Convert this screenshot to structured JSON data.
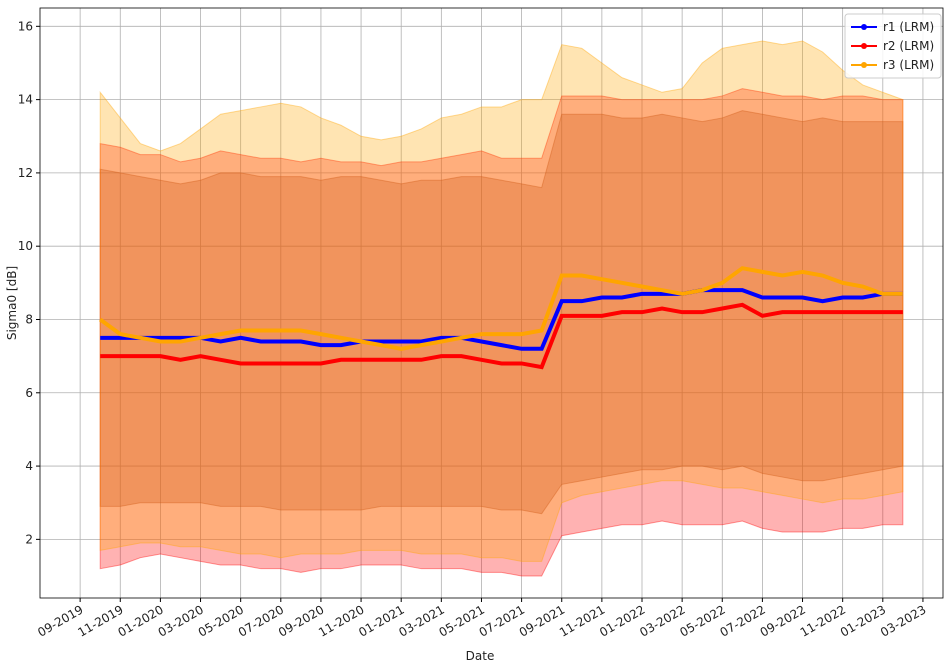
{
  "chart_data": {
    "type": "line",
    "x_label": "Date",
    "y_label": "Sigma0 [dB]",
    "x": [
      "2019-10",
      "2019-11",
      "2019-12",
      "2020-01",
      "2020-02",
      "2020-03",
      "2020-04",
      "2020-05",
      "2020-06",
      "2020-07",
      "2020-08",
      "2020-09",
      "2020-10",
      "2020-11",
      "2020-12",
      "2021-01",
      "2021-02",
      "2021-03",
      "2021-04",
      "2021-05",
      "2021-06",
      "2021-07",
      "2021-08",
      "2021-09",
      "2021-10",
      "2021-11",
      "2021-12",
      "2022-01",
      "2022-02",
      "2022-03",
      "2022-04",
      "2022-05",
      "2022-06",
      "2022-07",
      "2022-08",
      "2022-09",
      "2022-10",
      "2022-11",
      "2022-12",
      "2023-01",
      "2023-02"
    ],
    "series": [
      {
        "name": "r1 (LRM)",
        "color": "#0000ff",
        "band_color": "#a0522d",
        "values": [
          7.5,
          7.5,
          7.5,
          7.5,
          7.5,
          7.5,
          7.4,
          7.5,
          7.4,
          7.4,
          7.4,
          7.3,
          7.3,
          7.4,
          7.4,
          7.4,
          7.4,
          7.5,
          7.5,
          7.4,
          7.3,
          7.2,
          7.2,
          8.5,
          8.5,
          8.6,
          8.6,
          8.7,
          8.7,
          8.7,
          8.8,
          8.8,
          8.8,
          8.6,
          8.6,
          8.6,
          8.5,
          8.6,
          8.6,
          8.7,
          8.7
        ],
        "lower": [
          2.9,
          2.9,
          3.0,
          3.0,
          3.0,
          3.0,
          2.9,
          2.9,
          2.9,
          2.8,
          2.8,
          2.8,
          2.8,
          2.8,
          2.9,
          2.9,
          2.9,
          2.9,
          2.9,
          2.9,
          2.8,
          2.8,
          2.7,
          3.5,
          3.6,
          3.7,
          3.8,
          3.9,
          3.9,
          4.0,
          4.0,
          3.9,
          4.0,
          3.8,
          3.7,
          3.6,
          3.6,
          3.7,
          3.8,
          3.9,
          4.0
        ],
        "upper": [
          12.1,
          12.0,
          11.9,
          11.8,
          11.7,
          11.8,
          12.0,
          12.0,
          11.9,
          11.9,
          11.9,
          11.8,
          11.9,
          11.9,
          11.8,
          11.7,
          11.8,
          11.8,
          11.9,
          11.9,
          11.8,
          11.7,
          11.6,
          13.6,
          13.6,
          13.6,
          13.5,
          13.5,
          13.6,
          13.5,
          13.4,
          13.5,
          13.7,
          13.6,
          13.5,
          13.4,
          13.5,
          13.4,
          13.4,
          13.4,
          13.4
        ]
      },
      {
        "name": "r2 (LRM)",
        "color": "#ff0000",
        "band_color": "#ff0000",
        "values": [
          7.0,
          7.0,
          7.0,
          7.0,
          6.9,
          7.0,
          6.9,
          6.8,
          6.8,
          6.8,
          6.8,
          6.8,
          6.9,
          6.9,
          6.9,
          6.9,
          6.9,
          7.0,
          7.0,
          6.9,
          6.8,
          6.8,
          6.7,
          8.1,
          8.1,
          8.1,
          8.2,
          8.2,
          8.3,
          8.2,
          8.2,
          8.3,
          8.4,
          8.1,
          8.2,
          8.2,
          8.2,
          8.2,
          8.2,
          8.2,
          8.2
        ],
        "lower": [
          1.2,
          1.3,
          1.5,
          1.6,
          1.5,
          1.4,
          1.3,
          1.3,
          1.2,
          1.2,
          1.1,
          1.2,
          1.2,
          1.3,
          1.3,
          1.3,
          1.2,
          1.2,
          1.2,
          1.1,
          1.1,
          1.0,
          1.0,
          2.1,
          2.2,
          2.3,
          2.4,
          2.4,
          2.5,
          2.4,
          2.4,
          2.4,
          2.5,
          2.3,
          2.2,
          2.2,
          2.2,
          2.3,
          2.3,
          2.4,
          2.4
        ],
        "upper": [
          12.8,
          12.7,
          12.5,
          12.5,
          12.3,
          12.4,
          12.6,
          12.5,
          12.4,
          12.4,
          12.3,
          12.4,
          12.3,
          12.3,
          12.2,
          12.3,
          12.3,
          12.4,
          12.5,
          12.6,
          12.4,
          12.4,
          12.4,
          14.1,
          14.1,
          14.1,
          14.0,
          14.0,
          14.0,
          14.0,
          14.0,
          14.1,
          14.3,
          14.2,
          14.1,
          14.1,
          14.0,
          14.1,
          14.1,
          14.0,
          14.0
        ]
      },
      {
        "name": "r3 (LRM)",
        "color": "#ffa500",
        "band_color": "#ffa500",
        "values": [
          8.0,
          7.6,
          7.5,
          7.4,
          7.4,
          7.5,
          7.6,
          7.7,
          7.7,
          7.7,
          7.7,
          7.6,
          7.5,
          7.4,
          7.3,
          7.2,
          7.3,
          7.4,
          7.5,
          7.6,
          7.6,
          7.6,
          7.7,
          9.2,
          9.2,
          9.1,
          9.0,
          8.9,
          8.8,
          8.7,
          8.8,
          9.0,
          9.4,
          9.3,
          9.2,
          9.3,
          9.2,
          9.0,
          8.9,
          8.7,
          8.7
        ],
        "lower": [
          1.7,
          1.8,
          1.9,
          1.9,
          1.8,
          1.8,
          1.7,
          1.6,
          1.6,
          1.5,
          1.6,
          1.6,
          1.6,
          1.7,
          1.7,
          1.7,
          1.6,
          1.6,
          1.6,
          1.5,
          1.5,
          1.4,
          1.4,
          3.0,
          3.2,
          3.3,
          3.4,
          3.5,
          3.6,
          3.6,
          3.5,
          3.4,
          3.4,
          3.3,
          3.2,
          3.1,
          3.0,
          3.1,
          3.1,
          3.2,
          3.3
        ],
        "upper": [
          14.2,
          13.5,
          12.8,
          12.6,
          12.8,
          13.2,
          13.6,
          13.7,
          13.8,
          13.9,
          13.8,
          13.5,
          13.3,
          13.0,
          12.9,
          13.0,
          13.2,
          13.5,
          13.6,
          13.8,
          13.8,
          14.0,
          14.0,
          15.5,
          15.4,
          15.0,
          14.6,
          14.4,
          14.2,
          14.3,
          15.0,
          15.4,
          15.5,
          15.6,
          15.5,
          15.6,
          15.3,
          14.8,
          14.4,
          14.2,
          14.0
        ]
      }
    ],
    "band_opacity": 0.3,
    "xlim": [
      "2019-07",
      "2023-04"
    ],
    "xticks": [
      {
        "value": "2019-09",
        "label": "09-2019"
      },
      {
        "value": "2019-11",
        "label": "11-2019"
      },
      {
        "value": "2020-01",
        "label": "01-2020"
      },
      {
        "value": "2020-03",
        "label": "03-2020"
      },
      {
        "value": "2020-05",
        "label": "05-2020"
      },
      {
        "value": "2020-07",
        "label": "07-2020"
      },
      {
        "value": "2020-09",
        "label": "09-2020"
      },
      {
        "value": "2020-11",
        "label": "11-2020"
      },
      {
        "value": "2021-01",
        "label": "01-2021"
      },
      {
        "value": "2021-03",
        "label": "03-2021"
      },
      {
        "value": "2021-05",
        "label": "05-2021"
      },
      {
        "value": "2021-07",
        "label": "07-2021"
      },
      {
        "value": "2021-09",
        "label": "09-2021"
      },
      {
        "value": "2021-11",
        "label": "11-2021"
      },
      {
        "value": "2022-01",
        "label": "01-2022"
      },
      {
        "value": "2022-03",
        "label": "03-2022"
      },
      {
        "value": "2022-05",
        "label": "05-2022"
      },
      {
        "value": "2022-07",
        "label": "07-2022"
      },
      {
        "value": "2022-09",
        "label": "09-2022"
      },
      {
        "value": "2022-11",
        "label": "11-2022"
      },
      {
        "value": "2023-01",
        "label": "01-2023"
      },
      {
        "value": "2023-03",
        "label": "03-2023"
      }
    ],
    "ylim": [
      0.4,
      16.5
    ],
    "yticks": [
      2,
      4,
      6,
      8,
      10,
      12,
      14,
      16
    ],
    "grid": true,
    "legend": "upper right"
  }
}
